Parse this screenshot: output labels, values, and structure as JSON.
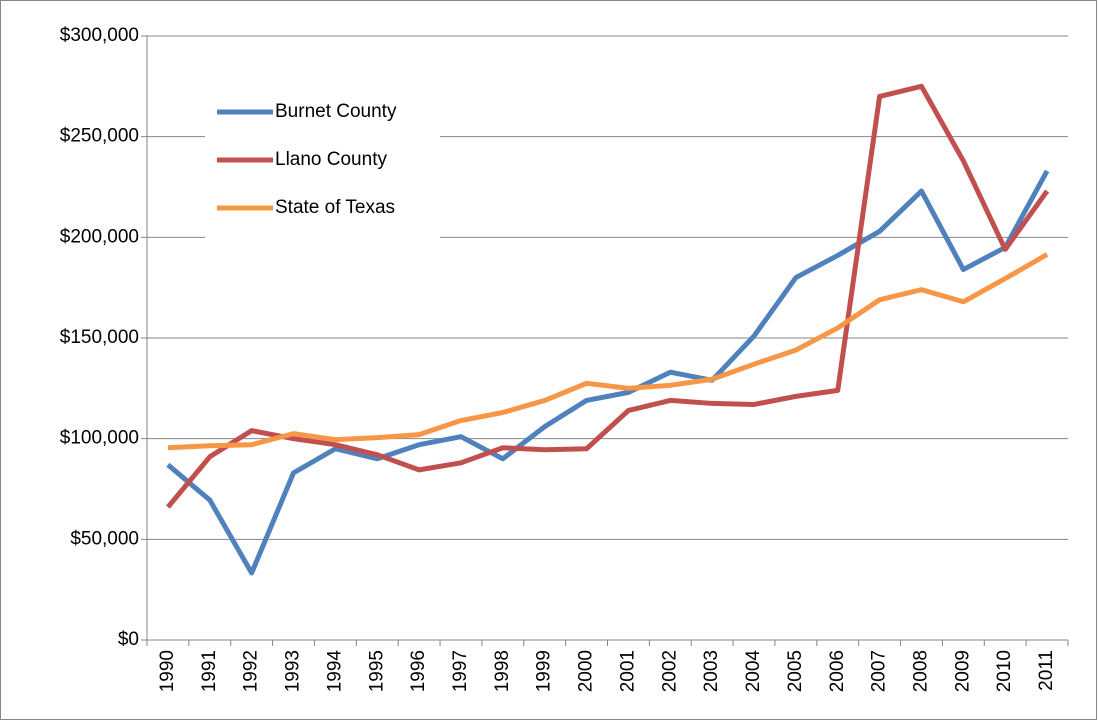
{
  "chart_data": {
    "type": "line",
    "categories": [
      "1990",
      "1991",
      "1992",
      "1993",
      "1994",
      "1995",
      "1996",
      "1997",
      "1998",
      "1999",
      "2000",
      "2001",
      "2002",
      "2003",
      "2004",
      "2005",
      "2006",
      "2007",
      "2008",
      "2009",
      "2010",
      "2011"
    ],
    "series": [
      {
        "name": "Burnet County",
        "color": "#4f81bd",
        "values": [
          87000,
          69500,
          33300,
          83000,
          95000,
          90000,
          97000,
          101000,
          90000,
          106000,
          119000,
          123000,
          133000,
          129000,
          151000,
          180000,
          191000,
          203000,
          223000,
          184000,
          195000,
          233000
        ]
      },
      {
        "name": "Llano County",
        "color": "#c0504d",
        "values": [
          66000,
          91000,
          104000,
          100000,
          97000,
          92000,
          84500,
          88000,
          95500,
          94500,
          95000,
          114000,
          119000,
          117500,
          117000,
          121000,
          124000,
          270000,
          275000,
          238000,
          194000,
          223000
        ]
      },
      {
        "name": "State of Texas",
        "color": "#f79646",
        "values": [
          95500,
          96500,
          97000,
          102500,
          99500,
          100500,
          102000,
          109000,
          113000,
          119000,
          127500,
          125000,
          126500,
          129500,
          137000,
          144000,
          155000,
          169000,
          174000,
          168000,
          179500,
          191500
        ]
      }
    ],
    "ylim": [
      0,
      300000
    ],
    "yticks": [
      {
        "value": 0,
        "label": "$0"
      },
      {
        "value": 50000,
        "label": "$50,000"
      },
      {
        "value": 100000,
        "label": "$100,000"
      },
      {
        "value": 150000,
        "label": "$150,000"
      },
      {
        "value": 200000,
        "label": "$200,000"
      },
      {
        "value": 250000,
        "label": "$250,000"
      },
      {
        "value": 300000,
        "label": "$300,000"
      }
    ],
    "grid": true,
    "legend": "upper left"
  }
}
